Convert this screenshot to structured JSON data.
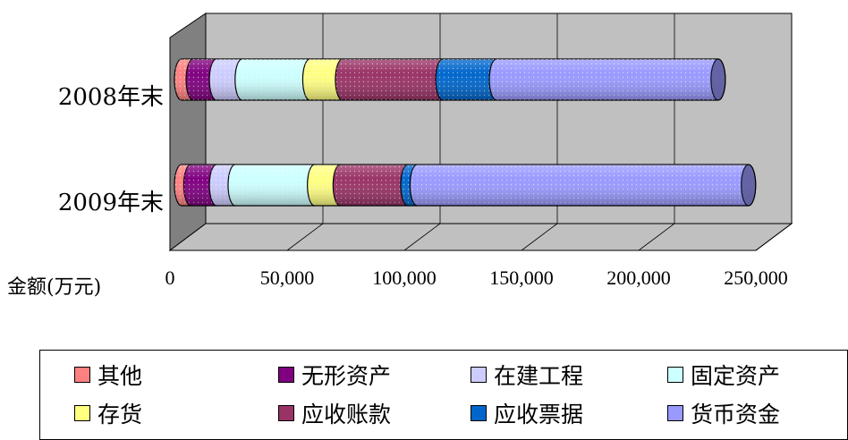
{
  "chart_data": {
    "type": "bar",
    "orientation": "horizontal",
    "stacked": true,
    "style": "3d-cylinder",
    "categories": [
      "2008年末",
      "2009年末"
    ],
    "x_unit_label": "金额(万元)",
    "xlim": [
      0,
      250000
    ],
    "x_ticks": [
      "0",
      "50,000",
      "100,000",
      "150,000",
      "200,000",
      "250,000"
    ],
    "grid": true,
    "legend_position": "bottom",
    "series": [
      {
        "name": "其他",
        "values": [
          5000,
          4000
        ],
        "color": "#FF8080"
      },
      {
        "name": "无形资产",
        "values": [
          10000,
          11000
        ],
        "color": "#800080"
      },
      {
        "name": "在建工程",
        "values": [
          11000,
          8000
        ],
        "color": "#CCCCFF"
      },
      {
        "name": "固定资产",
        "values": [
          29000,
          34000
        ],
        "color": "#CCFFFF"
      },
      {
        "name": "存货",
        "values": [
          14000,
          11000
        ],
        "color": "#FFFF80"
      },
      {
        "name": "应收账款",
        "values": [
          43000,
          29000
        ],
        "color": "#993366"
      },
      {
        "name": "应收票据",
        "values": [
          23000,
          4000
        ],
        "color": "#0066CC"
      },
      {
        "name": "货币资金",
        "values": [
          95000,
          142000
        ],
        "color": "#9999FF"
      }
    ]
  }
}
